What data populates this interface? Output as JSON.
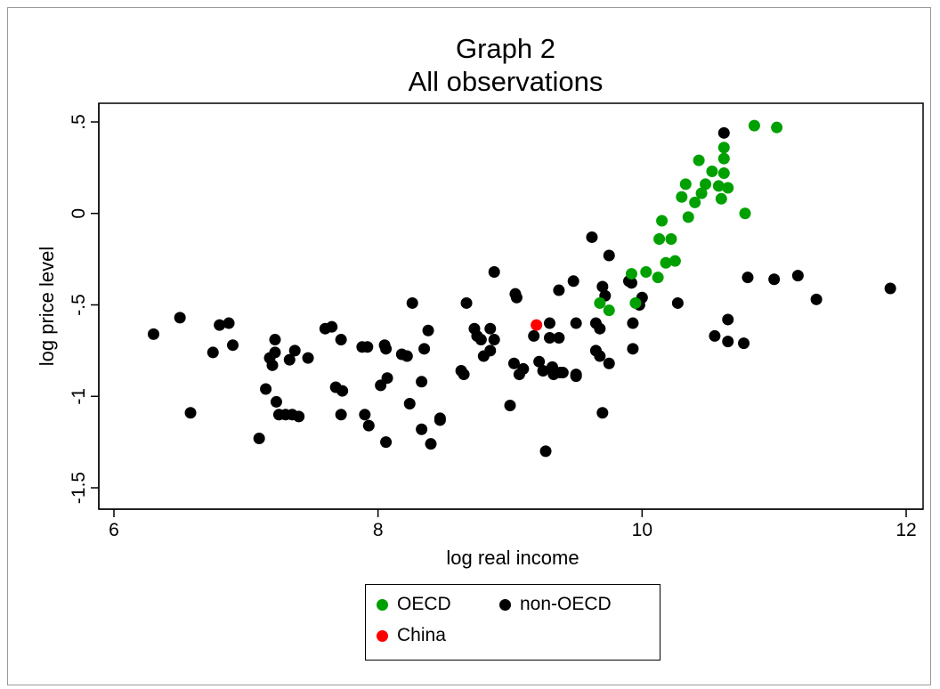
{
  "chart_data": {
    "type": "scatter",
    "title": "Graph 2",
    "subtitle": "All observations",
    "xlabel": "log real income",
    "ylabel": "log price level",
    "xlim": [
      6,
      12
    ],
    "ylim": [
      -1.5,
      0.5
    ],
    "xticks": [
      6,
      8,
      10,
      12
    ],
    "xtick_labels": [
      "6",
      "8",
      "10",
      "12"
    ],
    "yticks": [
      -1.5,
      -1,
      -0.5,
      0,
      0.5
    ],
    "ytick_labels": [
      "-1.5",
      "-1",
      "-.5",
      "0",
      ".5"
    ],
    "grid": false,
    "legend_position": "bottom",
    "series": [
      {
        "name": "OECD",
        "color": "#00a000",
        "points": [
          [
            10.85,
            0.48
          ],
          [
            11.02,
            0.47
          ],
          [
            10.62,
            0.36
          ],
          [
            10.62,
            0.3
          ],
          [
            10.43,
            0.29
          ],
          [
            10.53,
            0.23
          ],
          [
            10.62,
            0.22
          ],
          [
            10.33,
            0.16
          ],
          [
            10.48,
            0.16
          ],
          [
            10.58,
            0.15
          ],
          [
            10.65,
            0.14
          ],
          [
            10.45,
            0.11
          ],
          [
            10.3,
            0.09
          ],
          [
            10.4,
            0.06
          ],
          [
            10.6,
            0.08
          ],
          [
            10.78,
            0.0
          ],
          [
            10.35,
            -0.02
          ],
          [
            10.15,
            -0.04
          ],
          [
            10.22,
            -0.14
          ],
          [
            10.13,
            -0.14
          ],
          [
            10.18,
            -0.27
          ],
          [
            10.25,
            -0.26
          ],
          [
            10.12,
            -0.35
          ],
          [
            10.03,
            -0.32
          ],
          [
            9.92,
            -0.33
          ],
          [
            9.75,
            -0.53
          ],
          [
            9.68,
            -0.49
          ],
          [
            9.95,
            -0.49
          ]
        ]
      },
      {
        "name": "non-OECD",
        "color": "#000000",
        "points": [
          [
            10.62,
            0.44
          ],
          [
            6.3,
            -0.66
          ],
          [
            6.5,
            -0.57
          ],
          [
            6.58,
            -1.09
          ],
          [
            6.75,
            -0.76
          ],
          [
            6.8,
            -0.61
          ],
          [
            6.87,
            -0.6
          ],
          [
            6.9,
            -0.72
          ],
          [
            7.1,
            -1.23
          ],
          [
            7.15,
            -0.96
          ],
          [
            7.18,
            -0.79
          ],
          [
            7.2,
            -0.83
          ],
          [
            7.22,
            -0.69
          ],
          [
            7.22,
            -0.76
          ],
          [
            7.23,
            -1.03
          ],
          [
            7.25,
            -1.1
          ],
          [
            7.3,
            -1.1
          ],
          [
            7.33,
            -0.8
          ],
          [
            7.35,
            -1.1
          ],
          [
            7.37,
            -0.75
          ],
          [
            7.4,
            -1.11
          ],
          [
            7.47,
            -0.79
          ],
          [
            7.6,
            -0.63
          ],
          [
            7.65,
            -0.62
          ],
          [
            7.68,
            -0.95
          ],
          [
            7.72,
            -0.69
          ],
          [
            7.73,
            -0.97
          ],
          [
            7.72,
            -1.1
          ],
          [
            7.88,
            -0.73
          ],
          [
            7.92,
            -0.73
          ],
          [
            7.9,
            -1.1
          ],
          [
            7.93,
            -1.16
          ],
          [
            8.02,
            -0.94
          ],
          [
            8.05,
            -0.72
          ],
          [
            8.06,
            -0.74
          ],
          [
            8.07,
            -0.9
          ],
          [
            8.06,
            -1.25
          ],
          [
            8.18,
            -0.77
          ],
          [
            8.22,
            -0.78
          ],
          [
            8.24,
            -1.04
          ],
          [
            8.26,
            -0.49
          ],
          [
            8.33,
            -0.92
          ],
          [
            8.33,
            -1.18
          ],
          [
            8.35,
            -0.74
          ],
          [
            8.38,
            -0.64
          ],
          [
            8.4,
            -1.26
          ],
          [
            8.47,
            -1.13
          ],
          [
            8.47,
            -1.12
          ],
          [
            8.63,
            -0.86
          ],
          [
            8.65,
            -0.88
          ],
          [
            8.67,
            -0.49
          ],
          [
            8.73,
            -0.63
          ],
          [
            8.75,
            -0.67
          ],
          [
            8.78,
            -0.69
          ],
          [
            8.8,
            -0.78
          ],
          [
            8.85,
            -0.75
          ],
          [
            8.85,
            -0.63
          ],
          [
            8.88,
            -0.69
          ],
          [
            8.88,
            -0.32
          ],
          [
            9.0,
            -1.05
          ],
          [
            9.03,
            -0.82
          ],
          [
            9.04,
            -0.44
          ],
          [
            9.05,
            -0.46
          ],
          [
            9.07,
            -0.88
          ],
          [
            9.1,
            -0.85
          ],
          [
            9.18,
            -0.67
          ],
          [
            9.22,
            -0.81
          ],
          [
            9.25,
            -0.86
          ],
          [
            9.27,
            -1.3
          ],
          [
            9.3,
            -0.6
          ],
          [
            9.3,
            -0.68
          ],
          [
            9.32,
            -0.84
          ],
          [
            9.33,
            -0.88
          ],
          [
            9.37,
            -0.42
          ],
          [
            9.38,
            -0.87
          ],
          [
            9.37,
            -0.68
          ],
          [
            9.4,
            -0.87
          ],
          [
            9.48,
            -0.37
          ],
          [
            9.5,
            -0.88
          ],
          [
            9.5,
            -0.89
          ],
          [
            9.5,
            -0.6
          ],
          [
            9.62,
            -0.13
          ],
          [
            9.65,
            -0.6
          ],
          [
            9.65,
            -0.75
          ],
          [
            9.68,
            -0.78
          ],
          [
            9.68,
            -0.63
          ],
          [
            9.7,
            -0.4
          ],
          [
            9.7,
            -1.09
          ],
          [
            9.72,
            -0.45
          ],
          [
            9.75,
            -0.23
          ],
          [
            9.75,
            -0.82
          ],
          [
            9.9,
            -0.37
          ],
          [
            9.92,
            -0.38
          ],
          [
            9.93,
            -0.6
          ],
          [
            9.93,
            -0.74
          ],
          [
            9.98,
            -0.5
          ],
          [
            10.0,
            -0.46
          ],
          [
            10.27,
            -0.49
          ],
          [
            10.55,
            -0.67
          ],
          [
            10.65,
            -0.58
          ],
          [
            10.65,
            -0.7
          ],
          [
            10.77,
            -0.71
          ],
          [
            10.8,
            -0.35
          ],
          [
            11.0,
            -0.36
          ],
          [
            11.18,
            -0.34
          ],
          [
            11.32,
            -0.47
          ],
          [
            11.88,
            -0.41
          ]
        ]
      },
      {
        "name": "China",
        "color": "#ff0000",
        "points": [
          [
            9.2,
            -0.61
          ]
        ]
      }
    ]
  },
  "legend": {
    "items": [
      {
        "label": "OECD",
        "color": "#00a000"
      },
      {
        "label": "non-OECD",
        "color": "#000000"
      },
      {
        "label": "China",
        "color": "#ff0000"
      }
    ]
  }
}
